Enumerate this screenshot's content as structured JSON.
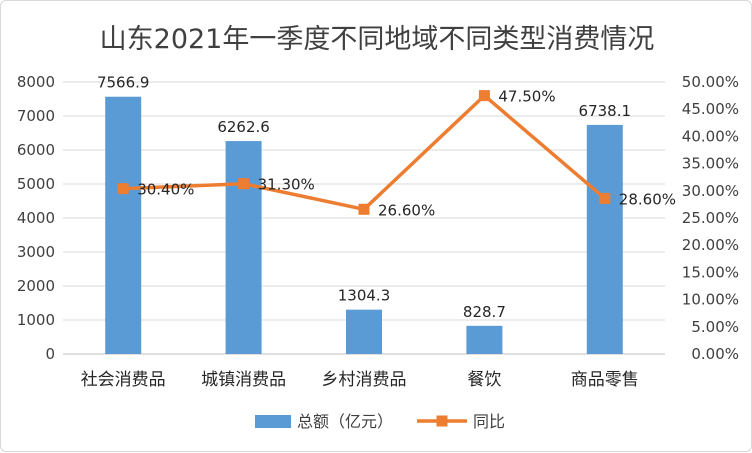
{
  "chart_data": {
    "type": "bar",
    "title": "山东2021年一季度不同地域不同类型消费情况",
    "categories": [
      "社会消费品",
      "城镇消费品",
      "乡村消费品",
      "餐饮",
      "商品零售"
    ],
    "series": [
      {
        "name": "总额（亿元）",
        "type": "bar",
        "axis": "left",
        "color": "#5b9bd5",
        "values": [
          7566.9,
          6262.6,
          1304.3,
          828.7,
          6738.1
        ],
        "labels": [
          "7566.9",
          "6262.6",
          "1304.3",
          "828.7",
          "6738.1"
        ]
      },
      {
        "name": "同比",
        "type": "line",
        "axis": "right",
        "color": "#ed7d31",
        "marker": "square",
        "values": [
          30.4,
          31.3,
          26.6,
          47.5,
          28.6
        ],
        "labels": [
          "30.40%",
          "31.30%",
          "26.60%",
          "47.50%",
          "28.60%"
        ]
      }
    ],
    "y_left": {
      "ylim": [
        0,
        8000
      ],
      "ticks": [
        "0",
        "1000",
        "2000",
        "3000",
        "4000",
        "5000",
        "6000",
        "7000",
        "8000"
      ]
    },
    "y_right": {
      "ylim": [
        0,
        50
      ],
      "ticks": [
        "0.00%",
        "5.00%",
        "10.00%",
        "15.00%",
        "20.00%",
        "25.00%",
        "30.00%",
        "35.00%",
        "40.00%",
        "45.00%",
        "50.00%"
      ]
    },
    "grid": true,
    "legend": "bottom"
  }
}
